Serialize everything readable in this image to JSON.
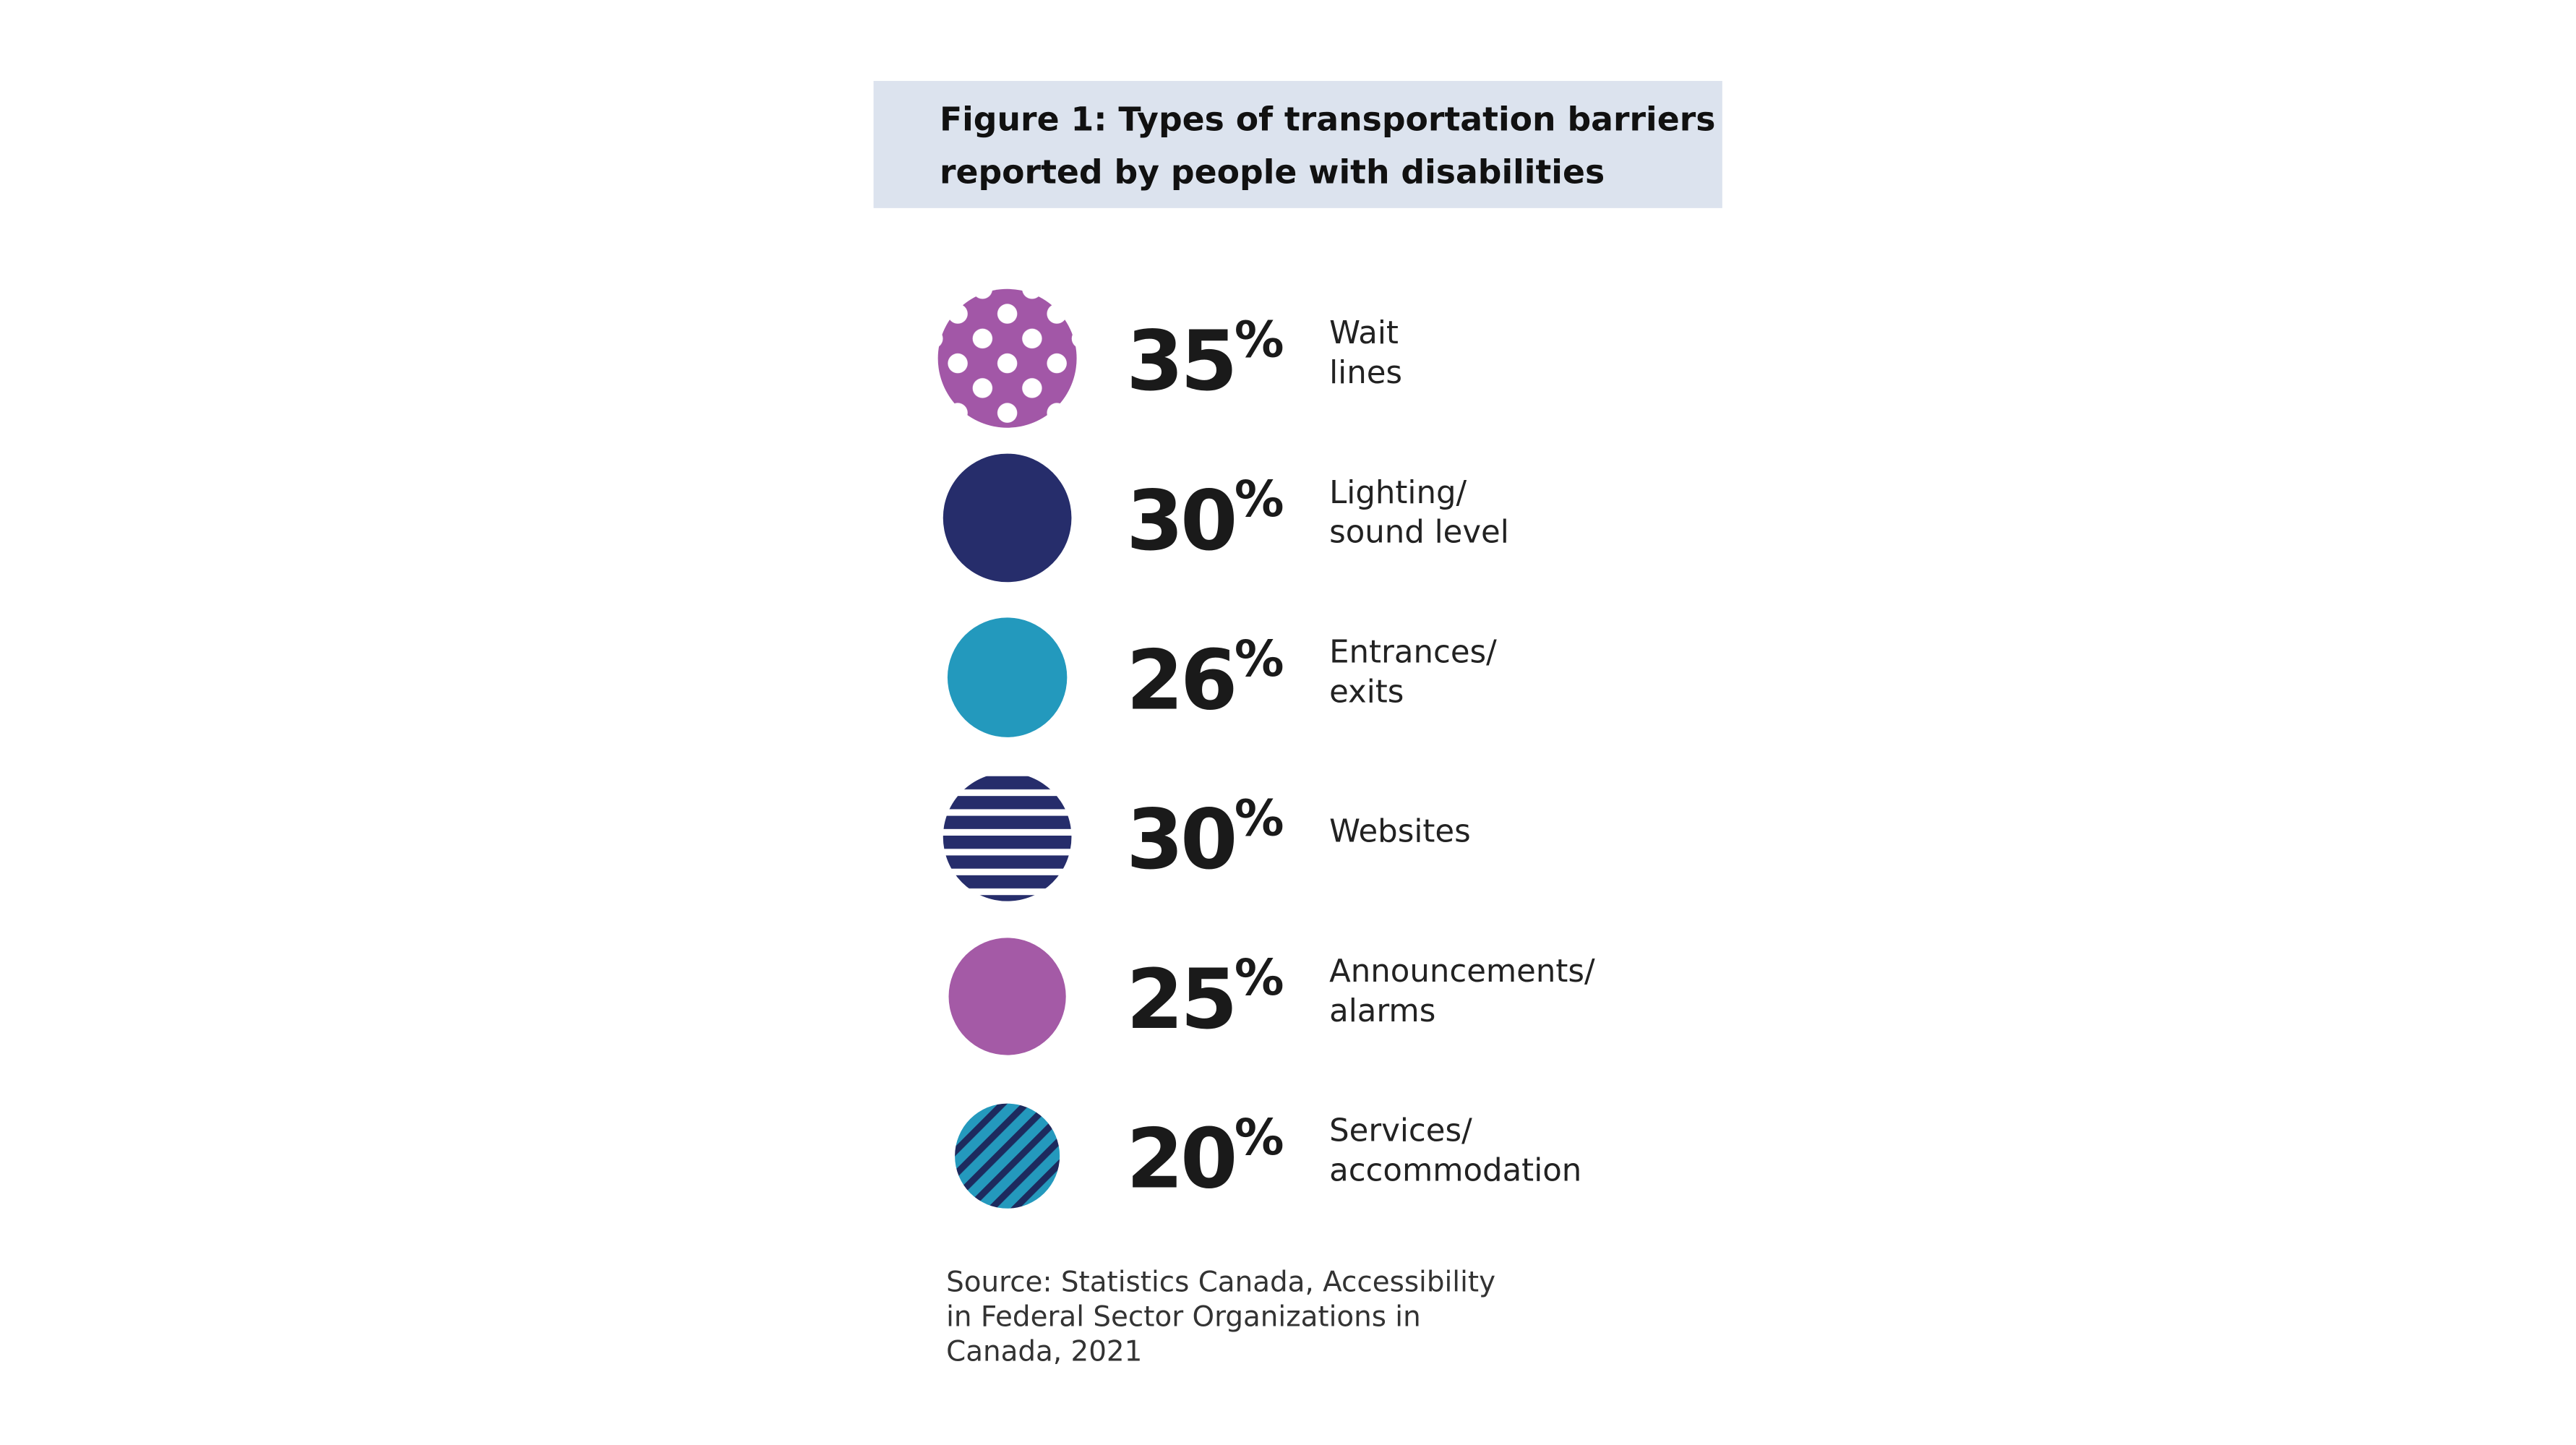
{
  "chart_data": {
    "type": "pictogram",
    "title": "Figure 1: Types of transportation barriers\nreported by people with disabilities",
    "categories": [
      "Wait\nlines",
      "Lighting/\nsound level",
      "Entrances/\nexits",
      "Websites",
      "Announcements/\nalarms",
      "Services/\naccommodation"
    ],
    "values": [
      35,
      30,
      26,
      30,
      25,
      20
    ],
    "value_labels": [
      "35%",
      "30%",
      "26%",
      "30%",
      "25%",
      "20%"
    ],
    "colors": [
      "#a257a7",
      "#262d6b",
      "#2399bd",
      "#262d6b",
      "#a45aa6",
      "#2499bd"
    ],
    "patterns": [
      "dots",
      "solid",
      "solid",
      "horizontal-stripes",
      "solid",
      "diagonal-stripes"
    ],
    "pattern_colors": [
      "#ffffff",
      null,
      null,
      "#ffffff",
      null,
      "#1d2a5e"
    ],
    "source": "Source: Statistics Canada, Accessibility\nin Federal Sector Organizations in\nCanada, 2021"
  }
}
